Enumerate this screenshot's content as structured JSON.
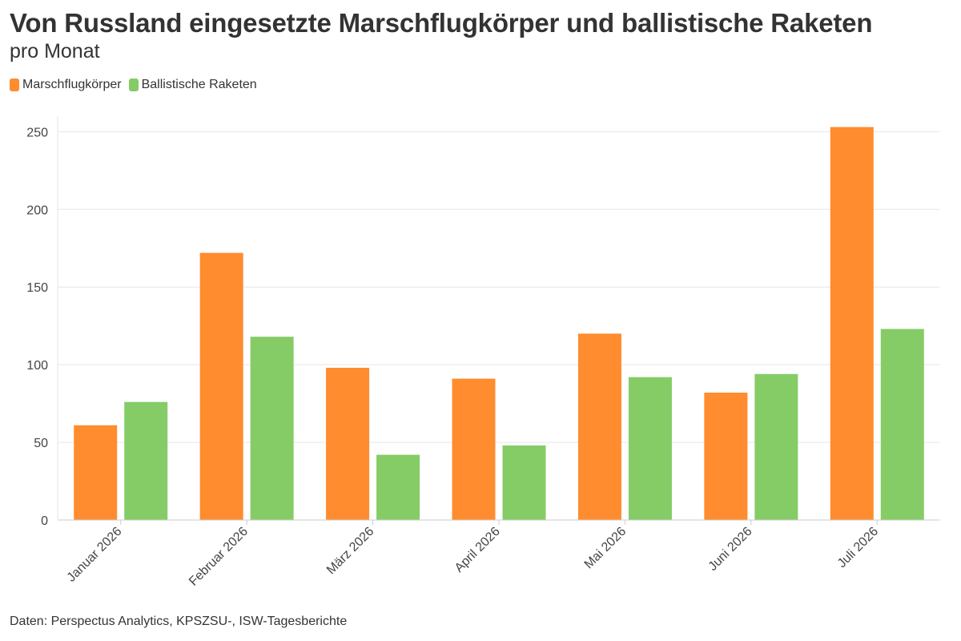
{
  "header": {
    "title": "Von Russland eingesetzte Marschflugkörper und ballistische Raketen",
    "subtitle": "pro Monat"
  },
  "footer": {
    "source": "Daten: Perspectus Analytics, KPSZSU-, ISW-Tagesberichte"
  },
  "colors": {
    "marschflugkoerper": "#ff8c2e",
    "ballistische": "#85cc66",
    "grid": "#e6e6e6",
    "axis": "#cccccc"
  },
  "chart_data": {
    "type": "bar",
    "title": "Von Russland eingesetzte Marschflugkörper und ballistische Raketen",
    "subtitle": "pro Monat",
    "xlabel": "",
    "ylabel": "",
    "categories": [
      "Januar 2026",
      "Februar 2026",
      "März 2026",
      "April 2026",
      "Mai 2026",
      "Juni 2026",
      "Juli 2026"
    ],
    "series": [
      {
        "name": "Marschflugkörper",
        "values": [
          61,
          172,
          98,
          91,
          120,
          82,
          253
        ],
        "color": "#ff8c2e"
      },
      {
        "name": "Ballistische Raketen",
        "values": [
          76,
          118,
          42,
          48,
          92,
          94,
          123
        ],
        "color": "#85cc66"
      }
    ],
    "ylim": [
      0,
      260
    ],
    "yticks": [
      0,
      50,
      100,
      150,
      200,
      250
    ],
    "grid": true,
    "legend": "top-left"
  }
}
